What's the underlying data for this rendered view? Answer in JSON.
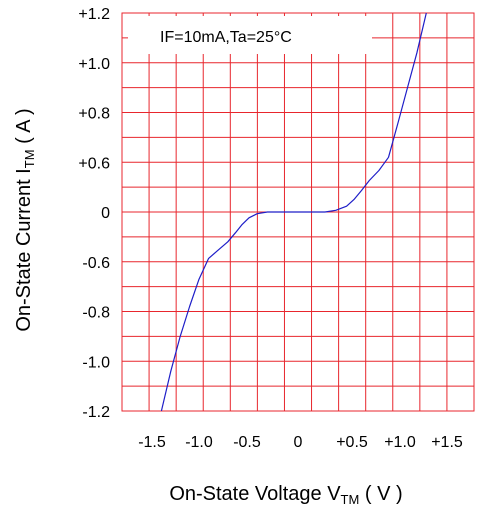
{
  "chart_data": {
    "type": "line",
    "annotation": "IF=10mA,Ta=25°C",
    "xlabel": {
      "main": "On-State Voltage V",
      "sub": "TM",
      "unit": " ( V )"
    },
    "ylabel": {
      "main": "On-State Current I",
      "sub": "TM",
      "unit": "  ( A )"
    },
    "x_ticks": [
      "-1.5",
      "-1.0",
      "-0.5",
      "0",
      "+0.5",
      "+1.0",
      "+1.5"
    ],
    "y_ticks": [
      "+1.2",
      "+1.0",
      "+0.8",
      "+0.6",
      "0",
      "-0.6",
      "-0.8",
      "-1.0",
      "-1.2"
    ],
    "grid": true,
    "colors": {
      "grid": "#e8262d",
      "curve": "#1e1ec8"
    },
    "series": [
      {
        "points": [
          [
            -1.4,
            -1.2
          ],
          [
            -1.3,
            -1.04
          ],
          [
            -1.2,
            -0.9
          ],
          [
            -1.1,
            -0.78
          ],
          [
            -1.0,
            -0.67
          ],
          [
            -0.9,
            -0.56
          ],
          [
            -0.8,
            -0.46
          ],
          [
            -0.7,
            -0.36
          ],
          [
            -0.62,
            -0.25
          ],
          [
            -0.55,
            -0.15
          ],
          [
            -0.48,
            -0.07
          ],
          [
            -0.4,
            -0.02
          ],
          [
            -0.3,
            0.0
          ],
          [
            -0.1,
            0.0
          ],
          [
            0.1,
            0.0
          ],
          [
            0.25,
            0.0
          ],
          [
            0.35,
            0.02
          ],
          [
            0.45,
            0.07
          ],
          [
            0.52,
            0.15
          ],
          [
            0.6,
            0.26
          ],
          [
            0.68,
            0.38
          ],
          [
            0.78,
            0.5
          ],
          [
            0.88,
            0.62
          ],
          [
            0.98,
            0.76
          ],
          [
            1.08,
            0.9
          ],
          [
            1.18,
            1.04
          ],
          [
            1.28,
            1.2
          ]
        ]
      }
    ]
  }
}
